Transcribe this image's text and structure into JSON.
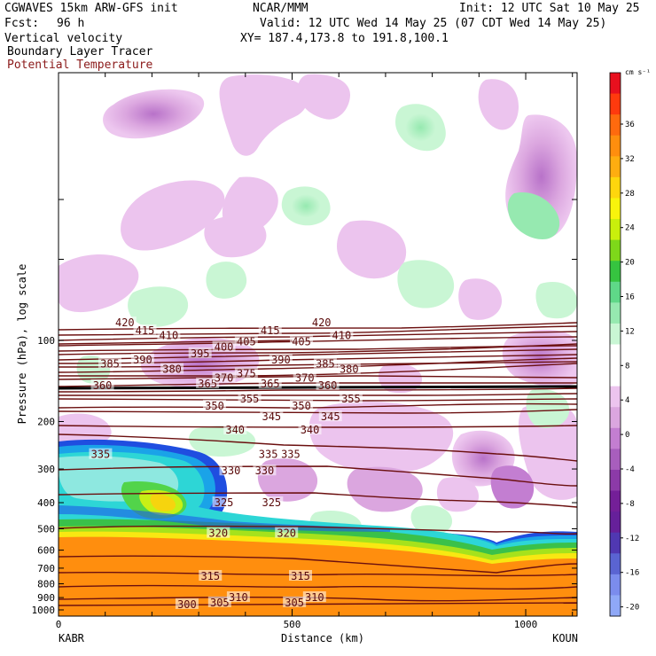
{
  "header": {
    "model_line": "CGWAVES 15km ARW-GFS init",
    "org": "NCAR/MMM",
    "init": "Init: 12 UTC Sat 10 May 25",
    "fcst_label": "Fcst:",
    "fcst_value": "96 h",
    "valid": "Valid: 12 UTC Wed 14 May 25 (07 CDT Wed 14 May 25)",
    "field1": "Vertical velocity",
    "xy": "XY= 187.4,173.8 to 191.8,100.1",
    "field2": "Boundary Layer Tracer",
    "field3": "Potential Temperature",
    "field3_color": "#8b1a1a"
  },
  "chart_data": {
    "type": "heatmap",
    "xlabel": "Distance (km)",
    "ylabel": "Pressure (hPa), log scale",
    "xlim": [
      0,
      1110
    ],
    "x_ticks": [
      0,
      500,
      1000
    ],
    "y_scale": "log",
    "y_ticks": [
      100,
      200,
      300,
      400,
      500,
      600,
      700,
      800,
      900,
      1000
    ],
    "endpoints": {
      "left": "KABR",
      "right": "KOUN"
    },
    "colorbar": {
      "unit": "cm s⁻¹",
      "labels": [
        "36",
        "32",
        "28",
        "24",
        "20",
        "16",
        "12",
        "8",
        "4",
        "0",
        "-4",
        "-8",
        "-12",
        "-16",
        "-20"
      ],
      "colors": [
        "#e8101e",
        "#ff3a0e",
        "#ff6a0e",
        "#ff8e0e",
        "#ffad10",
        "#ffd60d",
        "#f8f40c",
        "#c9ef0c",
        "#7ed81a",
        "#36c440",
        "#5fd888",
        "#96e9b0",
        "#c9f6d4",
        "#ffffff",
        "#ffffff",
        "#ecc4ee",
        "#dba6df",
        "#c37ed1",
        "#a85ebd",
        "#8c3aa8",
        "#741f98",
        "#66209a",
        "#5038b2",
        "#5a64d2",
        "#7b8ced",
        "#8fa8f7"
      ]
    },
    "isentropes": [
      {
        "theta": 300,
        "label_x": 275
      },
      {
        "theta": 305,
        "label_x": 345
      },
      {
        "theta": 305,
        "label_x": 505
      },
      {
        "theta": 310,
        "label_x": 385
      },
      {
        "theta": 310,
        "label_x": 548
      },
      {
        "theta": 315,
        "label_x": 325
      },
      {
        "theta": 315,
        "label_x": 518
      },
      {
        "theta": 320,
        "label_x": 342
      },
      {
        "theta": 320,
        "label_x": 488
      },
      {
        "theta": 325,
        "label_x": 354
      },
      {
        "theta": 325,
        "label_x": 456
      },
      {
        "theta": 330,
        "label_x": 369
      },
      {
        "theta": 330,
        "label_x": 441
      },
      {
        "theta": 335,
        "label_x": 90
      },
      {
        "theta": 335,
        "label_x": 449
      },
      {
        "theta": 335,
        "label_x": 497
      },
      {
        "theta": 340,
        "label_x": 378
      },
      {
        "theta": 340,
        "label_x": 538
      },
      {
        "theta": 345,
        "label_x": 456
      },
      {
        "theta": 345,
        "label_x": 582
      },
      {
        "theta": 350,
        "label_x": 334
      },
      {
        "theta": 350,
        "label_x": 520
      },
      {
        "theta": 355,
        "label_x": 409
      },
      {
        "theta": 355,
        "label_x": 626
      },
      {
        "theta": 360,
        "label_x": 94
      },
      {
        "theta": 360,
        "label_x": 576
      },
      {
        "theta": 365,
        "label_x": 319
      },
      {
        "theta": 365,
        "label_x": 453
      },
      {
        "theta": 370,
        "label_x": 354
      },
      {
        "theta": 370,
        "label_x": 527
      },
      {
        "theta": 375,
        "label_x": 402
      },
      {
        "theta": 380,
        "label_x": 243
      },
      {
        "theta": 380,
        "label_x": 622
      },
      {
        "theta": 385,
        "label_x": 110
      },
      {
        "theta": 385,
        "label_x": 571
      },
      {
        "theta": 390,
        "label_x": 180
      },
      {
        "theta": 390,
        "label_x": 476
      },
      {
        "theta": 395,
        "label_x": 303
      },
      {
        "theta": 400,
        "label_x": 354
      },
      {
        "theta": 405,
        "label_x": 402
      },
      {
        "theta": 405,
        "label_x": 520
      },
      {
        "theta": 410,
        "label_x": 236
      },
      {
        "theta": 410,
        "label_x": 606
      },
      {
        "theta": 415,
        "label_x": 185
      },
      {
        "theta": 415,
        "label_x": 453
      },
      {
        "theta": 420,
        "label_x": 142
      },
      {
        "theta": 420,
        "label_x": 563
      }
    ],
    "tropopause_level_hpa": 150
  }
}
